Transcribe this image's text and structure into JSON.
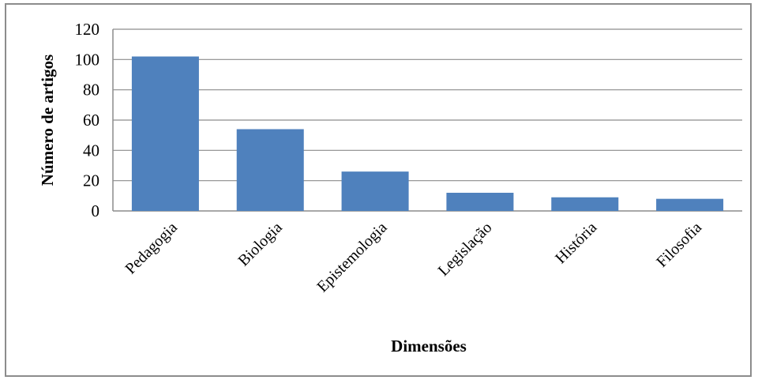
{
  "chart_data": {
    "type": "bar",
    "categories": [
      "Pedagogia",
      "Biologia",
      "Epistemologia",
      "Legislação",
      "História",
      "Filosofia"
    ],
    "values": [
      102,
      54,
      26,
      12,
      9,
      8
    ],
    "title": "",
    "xlabel": "Dimensões",
    "ylabel": "Número de artigos",
    "ylim": [
      0,
      120
    ],
    "yticks": [
      0,
      20,
      40,
      60,
      80,
      100,
      120
    ],
    "grid": true,
    "legend": "none",
    "bar_color": "#4f81bd",
    "grid_color": "#8c8c8c"
  }
}
